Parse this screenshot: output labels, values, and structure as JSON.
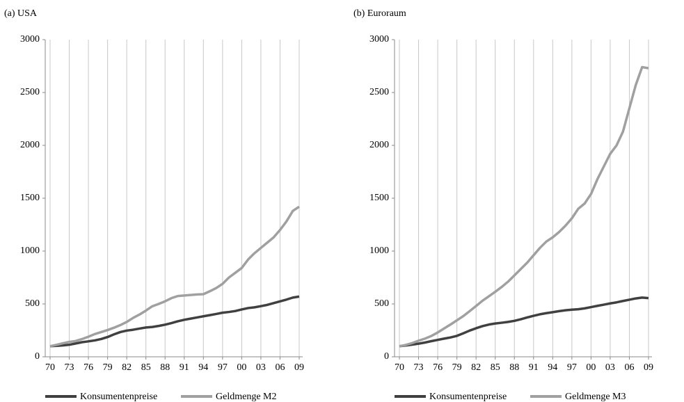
{
  "chart_data": [
    {
      "type": "line",
      "title": "(a) USA",
      "categories": [
        "70",
        null,
        null,
        "73",
        null,
        null,
        "76",
        null,
        null,
        "79",
        null,
        null,
        "82",
        null,
        null,
        "85",
        null,
        null,
        "88",
        null,
        null,
        "91",
        null,
        null,
        "94",
        null,
        null,
        "97",
        null,
        null,
        "00",
        null,
        null,
        "03",
        null,
        null,
        "06",
        null,
        null,
        "09"
      ],
      "series": [
        {
          "name": "Konsumentenpreise",
          "color": "#404040",
          "values": [
            100,
            104,
            108,
            114,
            126,
            138,
            146,
            155,
            168,
            187,
            212,
            234,
            248,
            256,
            267,
            277,
            282,
            292,
            304,
            319,
            336,
            350,
            361,
            372,
            383,
            394,
            405,
            417,
            424,
            433,
            448,
            461,
            468,
            479,
            491,
            508,
            524,
            541,
            560,
            570
          ]
        },
        {
          "name": "Geldmenge M2",
          "color": "#a0a0a0",
          "values": [
            100,
            113,
            128,
            141,
            149,
            168,
            190,
            215,
            234,
            253,
            275,
            300,
            330,
            368,
            400,
            437,
            478,
            500,
            525,
            555,
            575,
            580,
            585,
            590,
            592,
            620,
            650,
            690,
            750,
            795,
            840,
            920,
            980,
            1030,
            1080,
            1130,
            1200,
            1280,
            1380,
            1420
          ]
        }
      ],
      "ylim": [
        0,
        3000
      ],
      "yticks": [
        0,
        500,
        1000,
        1500,
        2000,
        2500,
        3000
      ],
      "grid": true
    },
    {
      "type": "line",
      "title": "(b) Euroraum",
      "categories": [
        "70",
        null,
        null,
        "73",
        null,
        null,
        "76",
        null,
        null,
        "79",
        null,
        null,
        "82",
        null,
        null,
        "85",
        null,
        null,
        "88",
        null,
        null,
        "91",
        null,
        null,
        "94",
        null,
        null,
        "97",
        null,
        null,
        "00",
        null,
        null,
        "03",
        null,
        null,
        "06",
        null,
        null,
        "09"
      ],
      "series": [
        {
          "name": "Konsumentenpreise",
          "color": "#404040",
          "values": [
            100,
            107,
            115,
            124,
            135,
            148,
            160,
            172,
            183,
            198,
            222,
            248,
            270,
            290,
            305,
            315,
            322,
            330,
            340,
            355,
            372,
            388,
            402,
            413,
            422,
            432,
            440,
            446,
            450,
            458,
            470,
            482,
            493,
            505,
            515,
            528,
            540,
            552,
            560,
            555
          ]
        },
        {
          "name": "Geldmenge M3",
          "color": "#a0a0a0",
          "values": [
            100,
            112,
            130,
            152,
            172,
            197,
            230,
            268,
            305,
            345,
            385,
            432,
            480,
            530,
            572,
            615,
            660,
            710,
            770,
            830,
            890,
            960,
            1030,
            1090,
            1130,
            1180,
            1240,
            1310,
            1400,
            1450,
            1540,
            1680,
            1800,
            1920,
            2000,
            2130,
            2350,
            2570,
            2740,
            2730
          ]
        }
      ],
      "ylim": [
        0,
        3000
      ],
      "yticks": [
        0,
        500,
        1000,
        1500,
        2000,
        2500,
        3000
      ],
      "grid": true
    }
  ]
}
